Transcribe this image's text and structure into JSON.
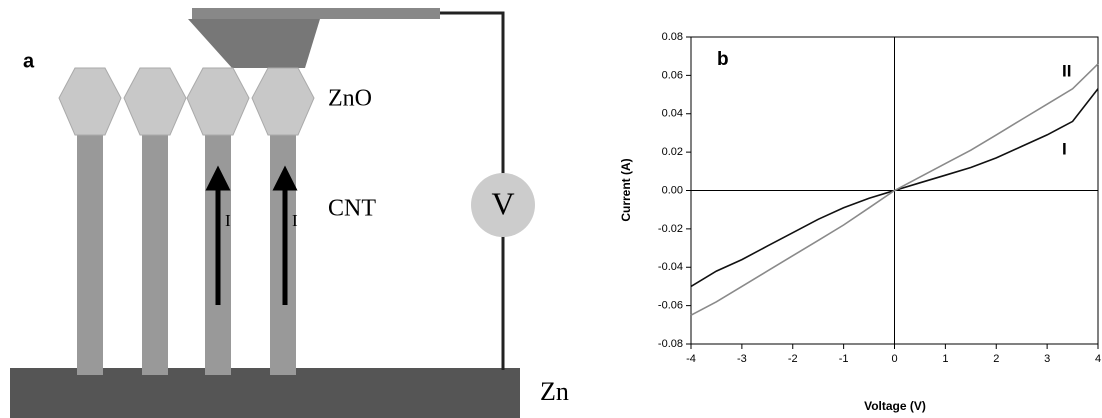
{
  "diagram": {
    "panel_label": "a",
    "top_label": "ZnO",
    "middle_label": "CNT",
    "meter_label": "V",
    "current_labels": [
      "I",
      "I"
    ],
    "base_label": "Zn"
  },
  "chart_data": {
    "type": "line",
    "panel_label": "b",
    "x_label": "Voltage (V)",
    "y_label": "Current (A)",
    "x": [
      -4,
      -3.5,
      -3,
      -2.5,
      -2,
      -1.5,
      -1,
      -0.5,
      0,
      0.5,
      1,
      1.5,
      2,
      2.5,
      3,
      3.5,
      4
    ],
    "series": [
      {
        "name": "I",
        "color": "#111111",
        "values": [
          -0.05,
          -0.042,
          -0.036,
          -0.029,
          -0.022,
          -0.015,
          -0.009,
          -0.004,
          0,
          0.004,
          0.008,
          0.012,
          0.017,
          0.023,
          0.029,
          0.036,
          0.053
        ]
      },
      {
        "name": "II",
        "color": "#8a8a8a",
        "values": [
          -0.065,
          -0.058,
          -0.05,
          -0.042,
          -0.034,
          -0.026,
          -0.018,
          -0.009,
          0,
          0.007,
          0.014,
          0.021,
          0.029,
          0.037,
          0.045,
          0.053,
          0.066
        ]
      }
    ],
    "xlim": [
      -4,
      4
    ],
    "xticks": [
      -4,
      -3,
      -2,
      -1,
      0,
      1,
      2,
      3,
      4
    ],
    "ylim": [
      -0.08,
      0.08
    ],
    "yticks": [
      -0.08,
      -0.06,
      -0.04,
      -0.02,
      {
        "value": 0,
        "label": "0.00"
      },
      0.02,
      0.04,
      0.06,
      0.08
    ]
  }
}
